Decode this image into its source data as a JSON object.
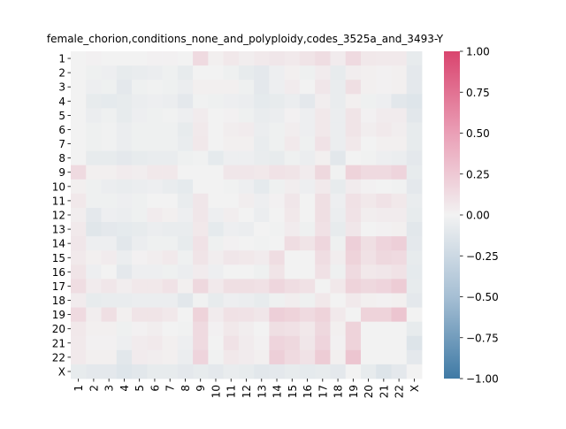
{
  "chart_data": {
    "type": "heatmap",
    "title": "female_chorion,conditions_none_and_polyploidy,codes_3525a_and_3493-Y",
    "categories": [
      "1",
      "2",
      "3",
      "4",
      "5",
      "6",
      "7",
      "8",
      "9",
      "10",
      "11",
      "12",
      "13",
      "14",
      "15",
      "16",
      "17",
      "18",
      "19",
      "20",
      "21",
      "22",
      "X"
    ],
    "rows": [
      "1",
      "2",
      "3",
      "4",
      "5",
      "6",
      "7",
      "8",
      "9",
      "10",
      "11",
      "12",
      "13",
      "14",
      "15",
      "16",
      "17",
      "18",
      "19",
      "20",
      "21",
      "22",
      "X"
    ],
    "colorbar": {
      "range": [
        -1.0,
        1.0
      ],
      "ticks": [
        "1.00",
        "0.75",
        "0.50",
        "0.25",
        "0.00",
        "−0.25",
        "−0.50",
        "−0.75",
        "−1.00"
      ],
      "tick_values": [
        1.0,
        0.75,
        0.5,
        0.25,
        0.0,
        -0.25,
        -0.5,
        -0.75,
        -1.0
      ],
      "colors": {
        "negative": "#3f7aa5",
        "zero": "#f2f2f2",
        "positive": "#d9446e"
      }
    },
    "values": [
      [
        0.0,
        0.01,
        0.0,
        0.0,
        0.0,
        0.01,
        0.01,
        0.0,
        0.14,
        0.02,
        0.06,
        0.03,
        0.05,
        0.07,
        0.05,
        0.08,
        0.12,
        0.04,
        0.14,
        0.06,
        0.05,
        0.05,
        -0.06
      ],
      [
        0.0,
        -0.02,
        -0.03,
        -0.06,
        -0.05,
        -0.04,
        -0.02,
        -0.06,
        0.0,
        0.0,
        -0.02,
        -0.06,
        -0.08,
        -0.03,
        0.02,
        -0.02,
        0.04,
        -0.06,
        0.03,
        0.02,
        0.01,
        0.02,
        -0.08
      ],
      [
        0.0,
        -0.03,
        -0.02,
        -0.08,
        -0.02,
        -0.01,
        -0.02,
        -0.04,
        0.02,
        0.02,
        0.02,
        -0.02,
        -0.08,
        -0.03,
        0.04,
        0.0,
        0.07,
        -0.05,
        0.11,
        0.02,
        0.01,
        0.02,
        -0.08
      ],
      [
        0.0,
        -0.06,
        -0.07,
        -0.06,
        -0.04,
        -0.03,
        -0.04,
        -0.08,
        -0.01,
        -0.02,
        -0.03,
        -0.04,
        -0.07,
        -0.06,
        -0.04,
        -0.08,
        0.03,
        -0.05,
        0.02,
        -0.02,
        -0.03,
        -0.09,
        -0.11
      ],
      [
        0.0,
        -0.04,
        -0.02,
        -0.06,
        -0.03,
        -0.02,
        -0.01,
        -0.03,
        0.04,
        0.0,
        0.01,
        -0.02,
        -0.05,
        -0.04,
        0.01,
        -0.03,
        0.06,
        -0.04,
        0.08,
        0.01,
        0.04,
        0.04,
        -0.09
      ],
      [
        0.0,
        -0.02,
        -0.01,
        -0.04,
        -0.02,
        -0.02,
        -0.02,
        -0.06,
        0.05,
        0.0,
        0.03,
        0.04,
        -0.04,
        -0.02,
        0.03,
        -0.03,
        0.06,
        -0.04,
        0.08,
        0.03,
        0.05,
        0.03,
        -0.06
      ],
      [
        0.0,
        -0.02,
        -0.01,
        -0.04,
        -0.02,
        -0.02,
        -0.02,
        -0.05,
        0.06,
        0.0,
        0.02,
        0.02,
        -0.05,
        -0.02,
        0.05,
        -0.02,
        0.09,
        -0.04,
        0.06,
        0.0,
        0.02,
        0.02,
        -0.06
      ],
      [
        0.0,
        -0.06,
        -0.06,
        -0.08,
        -0.06,
        -0.05,
        -0.05,
        -0.02,
        -0.01,
        -0.07,
        -0.03,
        -0.03,
        -0.05,
        -0.06,
        -0.02,
        -0.04,
        0.02,
        -0.09,
        0.0,
        -0.01,
        -0.03,
        -0.04,
        -0.08
      ],
      [
        0.14,
        0.02,
        0.02,
        0.04,
        0.03,
        0.06,
        0.06,
        0.0,
        0.0,
        0.0,
        0.07,
        0.07,
        0.06,
        0.09,
        0.08,
        0.04,
        0.15,
        -0.01,
        0.18,
        0.14,
        0.14,
        0.17,
        -0.06
      ],
      [
        0.02,
        -0.02,
        -0.04,
        -0.05,
        -0.04,
        -0.03,
        -0.05,
        -0.07,
        0.0,
        0.0,
        -0.01,
        -0.03,
        -0.07,
        -0.02,
        0.03,
        -0.03,
        0.05,
        -0.06,
        0.04,
        0.01,
        0.0,
        -0.01,
        -0.08
      ],
      [
        0.06,
        -0.02,
        -0.02,
        -0.03,
        -0.02,
        0.0,
        0.0,
        -0.05,
        0.07,
        0.0,
        0.0,
        0.03,
        -0.03,
        0.01,
        0.07,
        0.0,
        0.11,
        -0.03,
        0.1,
        0.06,
        0.09,
        0.06,
        -0.05
      ],
      [
        0.03,
        -0.08,
        -0.03,
        -0.04,
        -0.02,
        0.04,
        0.02,
        -0.03,
        0.07,
        -0.03,
        0.03,
        0.0,
        -0.04,
        0.0,
        0.06,
        0.0,
        0.11,
        -0.04,
        0.09,
        0.03,
        0.04,
        0.04,
        -0.06
      ],
      [
        0.05,
        -0.1,
        -0.08,
        -0.07,
        -0.06,
        -0.04,
        -0.05,
        -0.05,
        0.06,
        -0.07,
        -0.03,
        -0.04,
        0.0,
        -0.01,
        0.04,
        -0.02,
        0.1,
        -0.06,
        0.07,
        0.0,
        0.01,
        0.02,
        -0.09
      ],
      [
        0.07,
        -0.03,
        -0.03,
        -0.09,
        -0.04,
        -0.02,
        -0.02,
        -0.06,
        0.09,
        -0.02,
        0.01,
        0.0,
        -0.01,
        0.0,
        0.12,
        0.08,
        0.16,
        -0.02,
        0.2,
        0.11,
        0.17,
        0.2,
        -0.08
      ],
      [
        0.05,
        0.02,
        0.04,
        -0.04,
        0.01,
        0.03,
        0.05,
        -0.02,
        0.08,
        0.03,
        0.07,
        0.06,
        0.04,
        0.12,
        0.0,
        0.0,
        0.12,
        0.03,
        0.18,
        0.1,
        0.15,
        0.14,
        -0.06
      ],
      [
        0.08,
        -0.03,
        0.0,
        -0.08,
        -0.03,
        -0.03,
        -0.02,
        -0.04,
        0.04,
        -0.03,
        0.0,
        0.0,
        -0.02,
        0.08,
        0.0,
        0.0,
        0.1,
        -0.02,
        0.14,
        0.06,
        0.07,
        0.09,
        -0.07
      ],
      [
        0.12,
        0.04,
        0.07,
        0.03,
        0.06,
        0.06,
        0.09,
        0.02,
        0.15,
        0.05,
        0.11,
        0.11,
        0.1,
        0.16,
        0.12,
        0.1,
        0.0,
        0.06,
        0.18,
        0.15,
        0.17,
        0.22,
        -0.06
      ],
      [
        0.04,
        -0.06,
        -0.05,
        -0.05,
        -0.04,
        -0.04,
        -0.04,
        -0.09,
        -0.01,
        -0.06,
        -0.03,
        -0.04,
        -0.06,
        -0.02,
        0.03,
        -0.02,
        0.06,
        0.0,
        0.05,
        0.02,
        0.01,
        0.02,
        -0.08
      ],
      [
        0.14,
        0.03,
        0.11,
        0.02,
        0.08,
        0.08,
        0.06,
        0.0,
        0.18,
        0.04,
        0.1,
        0.09,
        0.07,
        0.2,
        0.18,
        0.14,
        0.18,
        0.05,
        0.0,
        0.18,
        0.18,
        0.26,
        0.0
      ],
      [
        0.06,
        0.02,
        0.02,
        -0.02,
        0.01,
        0.03,
        0.0,
        -0.01,
        0.14,
        0.01,
        0.06,
        0.03,
        0.0,
        0.11,
        0.1,
        0.06,
        0.15,
        0.02,
        0.18,
        0.0,
        0.0,
        0.0,
        -0.06
      ],
      [
        0.05,
        0.01,
        0.01,
        -0.03,
        0.04,
        0.05,
        0.02,
        -0.03,
        0.14,
        0.0,
        0.09,
        0.04,
        0.01,
        0.17,
        0.15,
        0.07,
        0.17,
        0.01,
        0.18,
        0.0,
        0.0,
        0.0,
        -0.12
      ],
      [
        0.05,
        0.02,
        0.02,
        -0.09,
        0.04,
        0.03,
        0.02,
        -0.04,
        0.17,
        -0.01,
        0.06,
        0.04,
        0.02,
        0.2,
        0.14,
        0.09,
        0.22,
        0.02,
        0.26,
        0.0,
        0.0,
        0.0,
        -0.08
      ],
      [
        -0.06,
        -0.08,
        -0.08,
        -0.11,
        -0.09,
        -0.06,
        -0.06,
        -0.08,
        -0.06,
        -0.08,
        -0.05,
        -0.06,
        -0.09,
        -0.08,
        -0.06,
        -0.07,
        -0.06,
        -0.08,
        0.0,
        -0.06,
        -0.12,
        -0.08,
        0.0
      ]
    ]
  }
}
